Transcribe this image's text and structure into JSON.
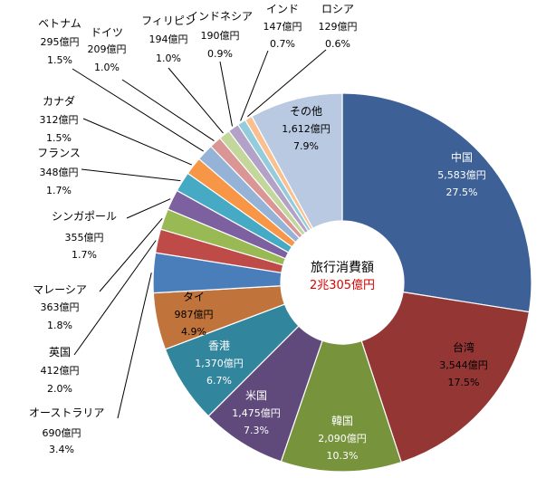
{
  "chart_data": {
    "type": "pie",
    "style": "donut",
    "center": {
      "title": "旅行消費額",
      "value": "2兆305億円",
      "value_color": "#e00000"
    },
    "unit": "億円",
    "slices": [
      {
        "name": "中国",
        "value": 5583,
        "value_label": "5,583億円",
        "percent": 27.5,
        "percent_label": "27.5%",
        "color": "#3d6096"
      },
      {
        "name": "台湾",
        "value": 3544,
        "value_label": "3,544億円",
        "percent": 17.5,
        "percent_label": "17.5%",
        "color": "#943634"
      },
      {
        "name": "韓国",
        "value": 2090,
        "value_label": "2,090億円",
        "percent": 10.3,
        "percent_label": "10.3%",
        "color": "#77933c"
      },
      {
        "name": "米国",
        "value": 1475,
        "value_label": "1,475億円",
        "percent": 7.3,
        "percent_label": "7.3%",
        "color": "#604a7b"
      },
      {
        "name": "香港",
        "value": 1370,
        "value_label": "1,370億円",
        "percent": 6.7,
        "percent_label": "6.7%",
        "color": "#31859c"
      },
      {
        "name": "タイ",
        "value": 987,
        "value_label": "987億円",
        "percent": 4.9,
        "percent_label": "4.9%",
        "color": "#c0733a"
      },
      {
        "name": "オーストラリア",
        "value": 690,
        "value_label": "690億円",
        "percent": 3.4,
        "percent_label": "3.4%",
        "color": "#4a7ebb"
      },
      {
        "name": "英国",
        "value": 412,
        "value_label": "412億円",
        "percent": 2.0,
        "percent_label": "2.0%",
        "color": "#be4b48"
      },
      {
        "name": "マレーシア",
        "value": 363,
        "value_label": "363億円",
        "percent": 1.8,
        "percent_label": "1.8%",
        "color": "#98b954"
      },
      {
        "name": "シンガポール",
        "value": 355,
        "value_label": "355億円",
        "percent": 1.7,
        "percent_label": "1.7%",
        "color": "#7d60a0"
      },
      {
        "name": "フランス",
        "value": 348,
        "value_label": "348億円",
        "percent": 1.7,
        "percent_label": "1.7%",
        "color": "#46aac5"
      },
      {
        "name": "カナダ",
        "value": 312,
        "value_label": "312億円",
        "percent": 1.5,
        "percent_label": "1.5%",
        "color": "#f79646"
      },
      {
        "name": "ベトナム",
        "value": 295,
        "value_label": "295億円",
        "percent": 1.5,
        "percent_label": "1.5%",
        "color": "#95b3d7"
      },
      {
        "name": "ドイツ",
        "value": 209,
        "value_label": "209億円",
        "percent": 1.0,
        "percent_label": "1.0%",
        "color": "#d99694"
      },
      {
        "name": "フィリピン",
        "value": 194,
        "value_label": "194億円",
        "percent": 1.0,
        "percent_label": "1.0%",
        "color": "#c3d69b"
      },
      {
        "name": "インドネシア",
        "value": 190,
        "value_label": "190億円",
        "percent": 0.9,
        "percent_label": "0.9%",
        "color": "#b3a2c7"
      },
      {
        "name": "インド",
        "value": 147,
        "value_label": "147億円",
        "percent": 0.7,
        "percent_label": "0.7%",
        "color": "#93cddd"
      },
      {
        "name": "ロシア",
        "value": 129,
        "value_label": "129億円",
        "percent": 0.6,
        "percent_label": "0.6%",
        "color": "#fac090"
      },
      {
        "name": "その他",
        "value": 1612,
        "value_label": "1,612億円",
        "percent": 7.9,
        "percent_label": "7.9%",
        "color": "#b9c9e2"
      }
    ]
  }
}
